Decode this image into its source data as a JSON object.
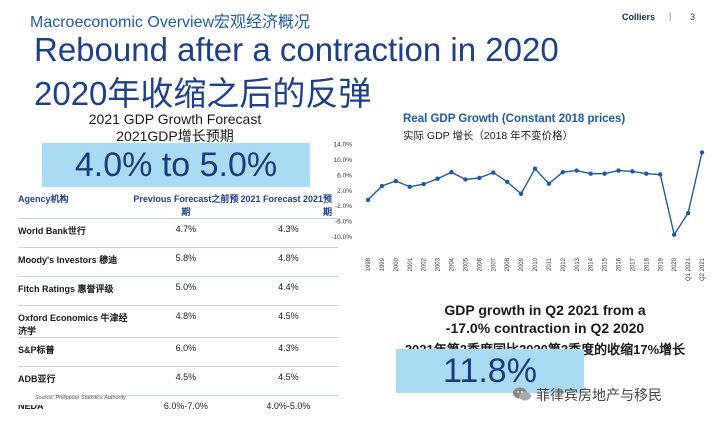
{
  "header": {
    "section_title": "Macroeconomic Overview宏观经济概况",
    "brand": "Colliers",
    "separator": "|",
    "page_number": "3",
    "headline_en": "Rebound after a contraction in 2020",
    "headline_cn": "2020年收缩之后的反弹"
  },
  "forecast": {
    "title_en": "2021 GDP Growth Forecast",
    "title_cn": "2021GDP增长预期",
    "highlight": "4.0% to 5.0%"
  },
  "table": {
    "headers": [
      "Agency机构",
      "Previous Forecast之前预期",
      "2021 Forecast 2021预期"
    ],
    "rows": [
      {
        "agency": "World Bank世行",
        "previous": "4.7%",
        "forecast": "4.3%"
      },
      {
        "agency": "Moody's Investors 穆迪",
        "previous": "5.8%",
        "forecast": "4.8%"
      },
      {
        "agency": "Fitch Ratings 惠誉评级",
        "previous": "5.0%",
        "forecast": "4.4%"
      },
      {
        "agency": "Oxford Economics 牛津经济学",
        "previous": "4.8%",
        "forecast": "4.5%"
      },
      {
        "agency": "S&P标普",
        "previous": "6.0%",
        "forecast": "4.3%"
      },
      {
        "agency": "ADB亚行",
        "previous": "4.5%",
        "forecast": "4.5%"
      },
      {
        "agency": "NEDA",
        "previous": "6.0%-7.0%",
        "forecast": "4.0%-5.0%"
      }
    ],
    "source": "Source: Philippine Statistics Authority"
  },
  "chart_data": {
    "type": "line",
    "title": "Real GDP Growth (Constant 2018 prices)",
    "subtitle": "实际 GDP 增长（2018 年不变价格）",
    "xlabel": "",
    "ylabel": "",
    "x": [
      "1998",
      "1999",
      "2000",
      "2001",
      "2002",
      "2003",
      "2004",
      "2005",
      "2006",
      "2007",
      "2008",
      "2009",
      "2010",
      "2011",
      "2012",
      "2013",
      "2014",
      "2015",
      "2016",
      "2017",
      "2018",
      "2019",
      "2020",
      "Q1 2021",
      "Q2 2021"
    ],
    "series": [
      {
        "values": [
          -0.5,
          3.1,
          4.4,
          2.9,
          3.6,
          5.0,
          6.7,
          4.8,
          5.2,
          6.6,
          4.2,
          1.1,
          7.6,
          3.7,
          6.7,
          7.1,
          6.3,
          6.3,
          7.1,
          6.9,
          6.3,
          6.1,
          -9.5,
          -3.9,
          11.8
        ]
      }
    ],
    "ylim": [
      -14,
      14
    ],
    "yticks": [
      "14.0%",
      "10.0%",
      "6.0%",
      "2.0%",
      "-2.0%",
      "-6.0%",
      "-10.0%"
    ],
    "grid": false,
    "color": "#1e5aa8"
  },
  "q2": {
    "line1": "GDP growth in Q2 2021 from a",
    "line2": "-17.0% contraction in Q2 2020",
    "line3": "2021年第2季度同比2020第2季度的收缩17%增长",
    "highlight": "11.8%"
  },
  "watermark": {
    "text": "菲律宾房地产与移民",
    "icon": "wechat-icon"
  }
}
